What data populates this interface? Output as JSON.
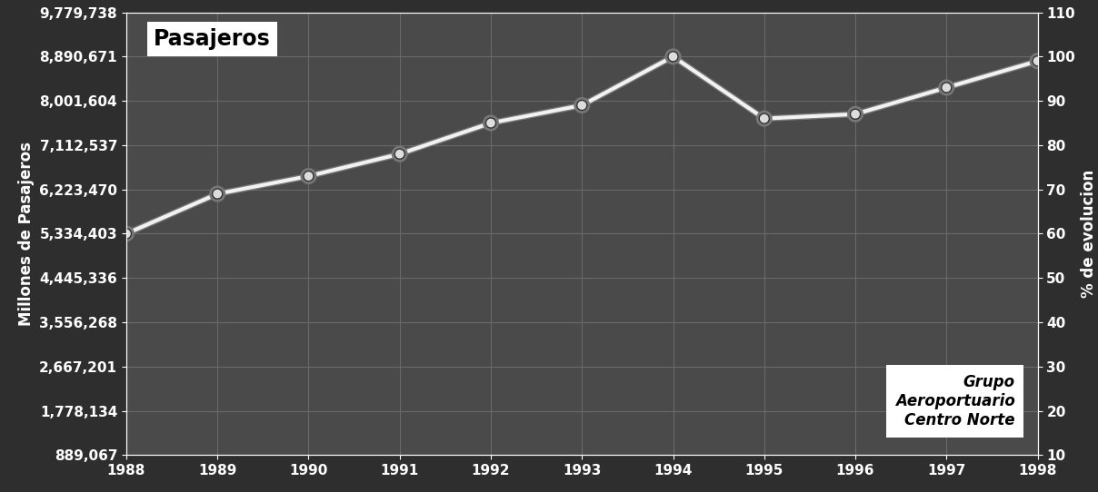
{
  "chart_data": {
    "type": "line",
    "title": "Pasajeros",
    "categories": [
      "1988",
      "1989",
      "1990",
      "1991",
      "1992",
      "1993",
      "1994",
      "1995",
      "1996",
      "1997",
      "1998"
    ],
    "y_label": "Millones de Pasajeros",
    "y2_label": "% de evolucion",
    "ylim": [
      889067,
      9779738
    ],
    "yticks": [
      {
        "value": 889067,
        "label": "889,067"
      },
      {
        "value": 1778134,
        "label": "1,778,134"
      },
      {
        "value": 2667201,
        "label": "2,667,201"
      },
      {
        "value": 3556268,
        "label": "3,556,268"
      },
      {
        "value": 4445336,
        "label": "4,445,336"
      },
      {
        "value": 5334403,
        "label": "5,334,403"
      },
      {
        "value": 6223470,
        "label": "6,223,470"
      },
      {
        "value": 7112537,
        "label": "7,112,537"
      },
      {
        "value": 8001604,
        "label": "8,001,604"
      },
      {
        "value": 8890671,
        "label": "8,890,671"
      },
      {
        "value": 9779738,
        "label": "9,779,738"
      }
    ],
    "y2lim": [
      10,
      110
    ],
    "y2ticks": [
      10,
      20,
      30,
      40,
      50,
      60,
      70,
      80,
      90,
      100,
      110
    ],
    "series": [
      {
        "color": "#f2f2f2",
        "marker": "o",
        "line_style": "solid",
        "axis": "y2",
        "values": [
          60,
          69,
          73,
          78,
          85,
          89,
          100,
          86,
          87,
          93,
          99
        ]
      }
    ],
    "annotations": [
      "Grupo\nAeroportuario\nCentro Norte"
    ],
    "grid": true
  }
}
